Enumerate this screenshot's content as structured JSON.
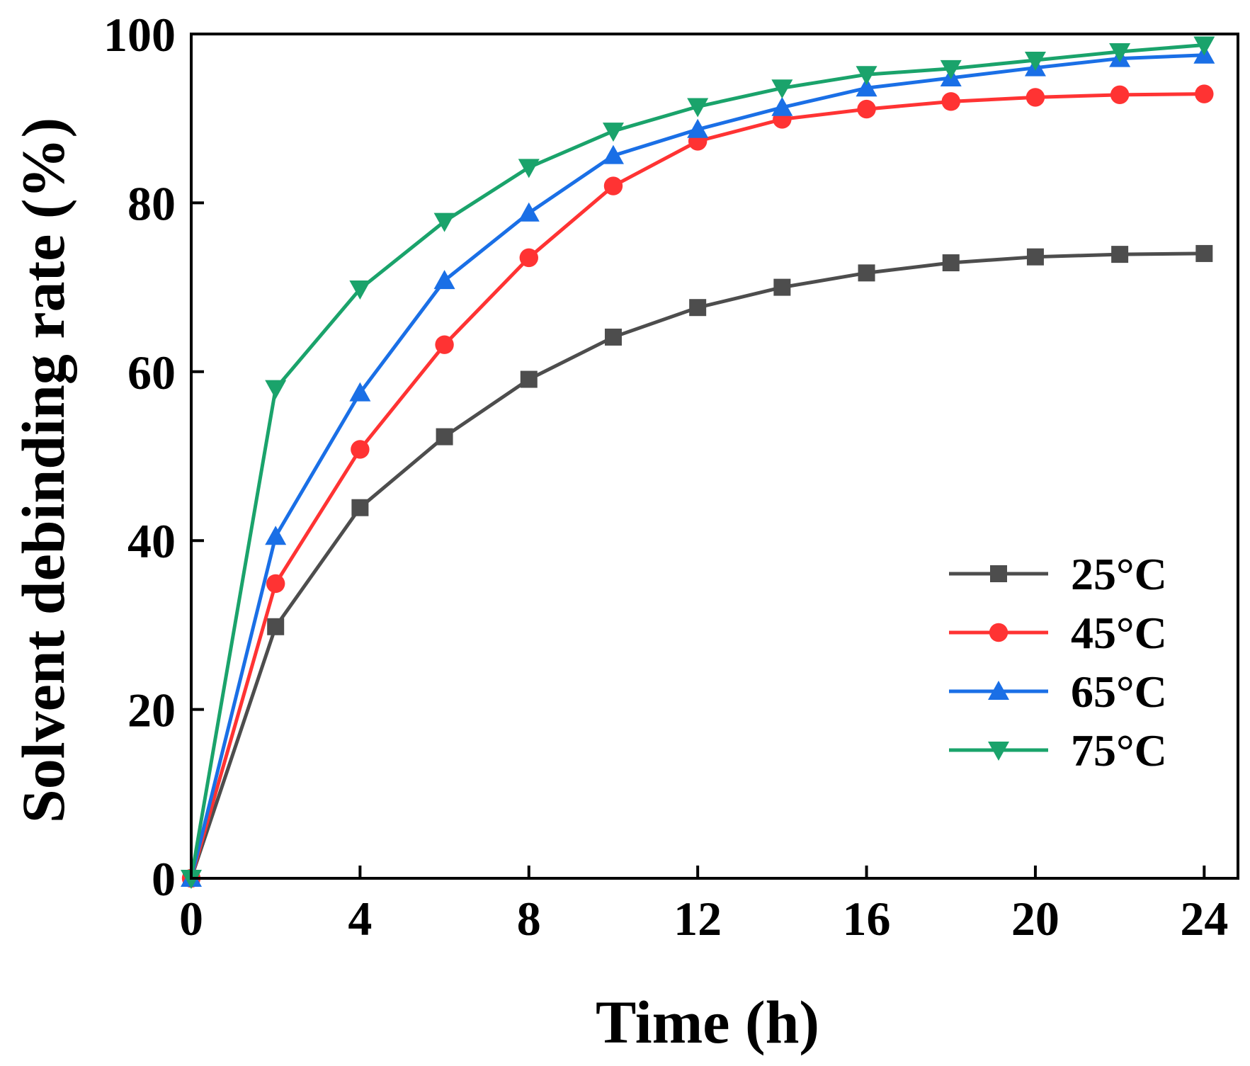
{
  "chart_data": {
    "type": "line",
    "title": "",
    "xlabel": "Time (h)",
    "ylabel": "Solvent debinding rate (%)",
    "xlim": [
      0,
      24.8
    ],
    "ylim": [
      0,
      100
    ],
    "xticks": [
      0,
      4,
      8,
      12,
      16,
      20,
      24
    ],
    "yticks": [
      0,
      20,
      40,
      60,
      80,
      100
    ],
    "grid": false,
    "legend_position": "lower-right",
    "x": [
      0,
      2,
      4,
      6,
      8,
      10,
      12,
      14,
      16,
      18,
      20,
      22,
      24
    ],
    "series": [
      {
        "name": "25°C",
        "color": "#4d4d4d",
        "marker": "square",
        "values": [
          0,
          29.8,
          43.9,
          52.3,
          59.1,
          64.1,
          67.6,
          70.0,
          71.7,
          72.9,
          73.6,
          73.9,
          74.0
        ]
      },
      {
        "name": "45°C",
        "color": "#ff3333",
        "marker": "circle",
        "values": [
          0,
          34.9,
          50.8,
          63.2,
          73.5,
          82.0,
          87.3,
          89.9,
          91.1,
          92.0,
          92.5,
          92.8,
          92.9
        ]
      },
      {
        "name": "65°C",
        "color": "#1a6fe6",
        "marker": "triangle-up",
        "values": [
          0,
          40.5,
          57.5,
          70.8,
          78.8,
          85.6,
          88.7,
          91.3,
          93.6,
          94.8,
          96.0,
          97.1,
          97.5
        ]
      },
      {
        "name": "75°C",
        "color": "#1aa36b",
        "marker": "triangle-down",
        "values": [
          0,
          58.0,
          69.8,
          77.8,
          84.2,
          88.5,
          91.4,
          93.6,
          95.2,
          95.9,
          96.9,
          97.9,
          98.7
        ]
      }
    ]
  }
}
